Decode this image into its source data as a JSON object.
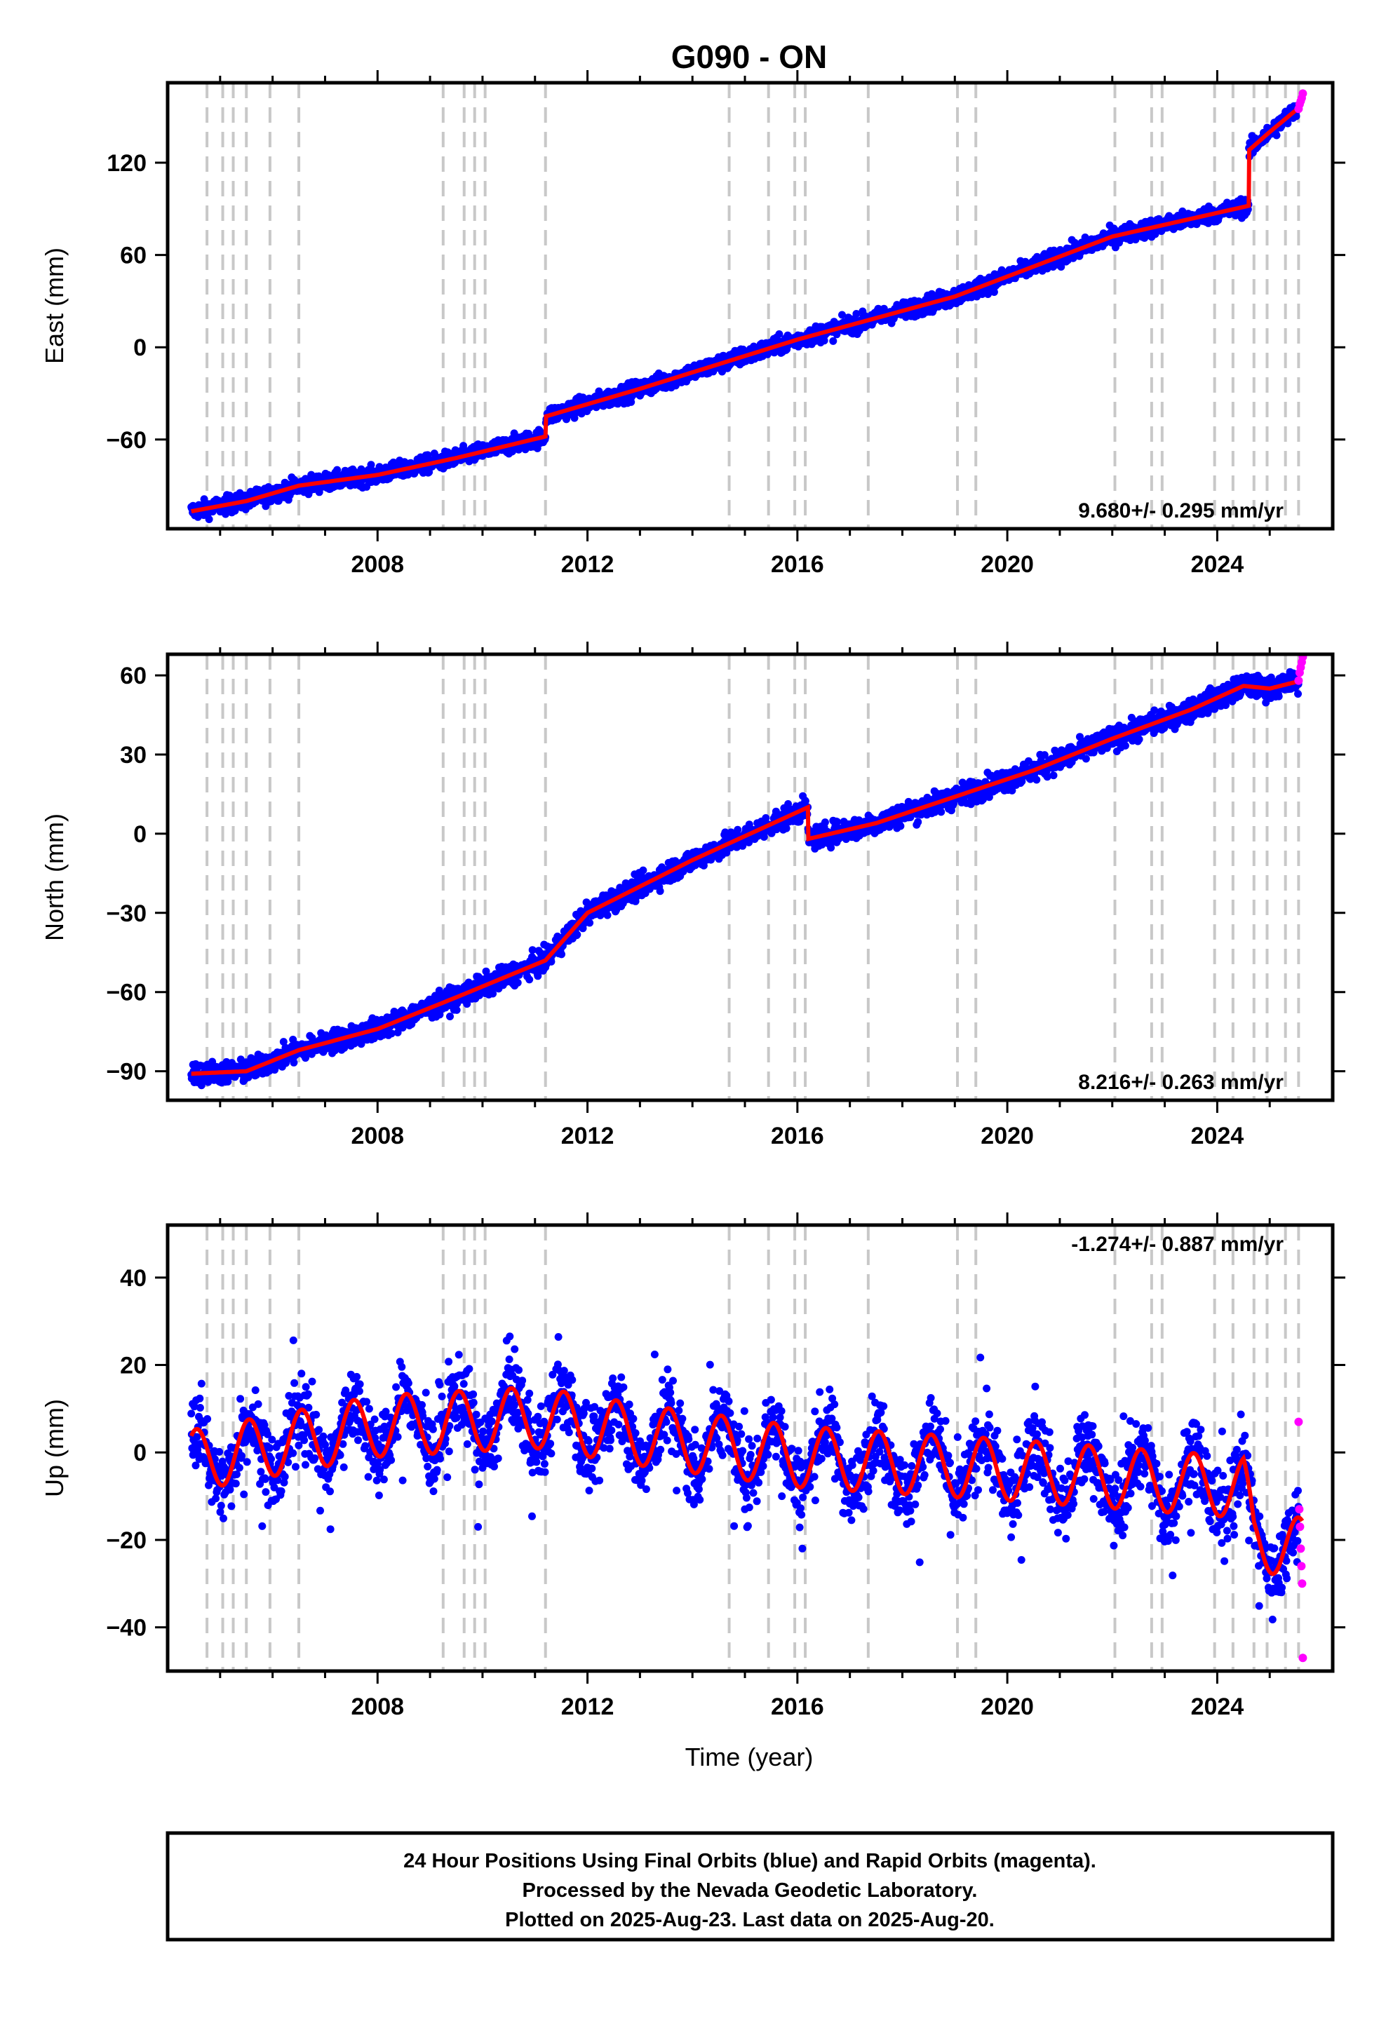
{
  "title": "G090 - ON",
  "x_label": "Time (year)",
  "footer": {
    "line1": "24 Hour Positions Using Final Orbits (blue) and Rapid Orbits (magenta).",
    "line2": "Processed by the Nevada Geodetic Laboratory.",
    "line3": "Plotted on 2025-Aug-23. Last data on 2025-Aug-20."
  },
  "colors": {
    "final_orbits": "#0000ff",
    "rapid_orbits": "#ff00ff",
    "model": "#ff0000",
    "event_lines": "#c8c8c8"
  },
  "chart_data": [
    {
      "type": "scatter",
      "id": "east",
      "ylabel": "East (mm)",
      "xlim": [
        2004.0,
        2026.2
      ],
      "ylim": [
        -118,
        172
      ],
      "x_ticks": [
        2008,
        2012,
        2016,
        2020,
        2024
      ],
      "y_ticks": [
        -60,
        0,
        60,
        120
      ],
      "rate_label": "9.680+/- 0.295 mm/yr",
      "rate_position": "bottom-right",
      "grid": false,
      "trend": [
        [
          2004.4,
          -107
        ],
        [
          2005.5,
          -100
        ],
        [
          2006.5,
          -90
        ],
        [
          2008.0,
          -83
        ],
        [
          2009.5,
          -72
        ],
        [
          2011.2,
          -58
        ],
        [
          2011.2,
          -45
        ],
        [
          2013.0,
          -27
        ],
        [
          2016.0,
          5
        ],
        [
          2019.0,
          33
        ],
        [
          2022.0,
          72
        ],
        [
          2024.6,
          92
        ],
        [
          2024.6,
          128
        ],
        [
          2025.0,
          140
        ],
        [
          2025.6,
          157
        ]
      ],
      "scatter_noise": 4,
      "rapid": {
        "x_range": [
          2025.55,
          2025.63
        ],
        "values": [
          155,
          158,
          160,
          162,
          165
        ]
      }
    },
    {
      "type": "scatter",
      "id": "north",
      "ylabel": "North (mm)",
      "xlim": [
        2004.0,
        2026.2
      ],
      "ylim": [
        -101,
        68
      ],
      "x_ticks": [
        2008,
        2012,
        2016,
        2020,
        2024
      ],
      "y_ticks": [
        -90,
        -60,
        -30,
        0,
        30,
        60
      ],
      "rate_label": "8.216+/- 0.263 mm/yr",
      "rate_position": "bottom-right",
      "grid": false,
      "trend": [
        [
          2004.4,
          -91
        ],
        [
          2005.5,
          -90
        ],
        [
          2006.5,
          -82
        ],
        [
          2008.0,
          -74
        ],
        [
          2009.5,
          -62
        ],
        [
          2011.2,
          -48
        ],
        [
          2012.0,
          -30
        ],
        [
          2014.0,
          -10
        ],
        [
          2016.2,
          10
        ],
        [
          2016.2,
          -2
        ],
        [
          2017.5,
          4
        ],
        [
          2019.0,
          14
        ],
        [
          2020.5,
          24
        ],
        [
          2022.0,
          36
        ],
        [
          2023.5,
          47
        ],
        [
          2024.5,
          56
        ],
        [
          2025.0,
          55
        ],
        [
          2025.6,
          58
        ]
      ],
      "scatter_noise": 3,
      "rapid": {
        "x_range": [
          2025.55,
          2025.63
        ],
        "values": [
          58,
          61,
          63,
          65,
          67
        ]
      }
    },
    {
      "type": "scatter",
      "id": "up",
      "ylabel": "Up (mm)",
      "xlim": [
        2004.0,
        2026.2
      ],
      "ylim": [
        -50,
        52
      ],
      "x_ticks": [
        2008,
        2012,
        2016,
        2020,
        2024
      ],
      "y_ticks": [
        -40,
        -20,
        0,
        20,
        40
      ],
      "rate_label": "-1.274+/- 0.887 mm/yr",
      "rate_position": "top-right",
      "grid": false,
      "trend": [
        [
          2004.4,
          -2
        ],
        [
          2008.0,
          6
        ],
        [
          2011.0,
          8
        ],
        [
          2013.0,
          4
        ],
        [
          2016.0,
          -1
        ],
        [
          2020.0,
          -4
        ],
        [
          2024.5,
          -8
        ],
        [
          2024.7,
          -20
        ],
        [
          2025.6,
          -22
        ]
      ],
      "seasonal_amplitude": 7,
      "scatter_noise": 6,
      "rapid": {
        "x_range": [
          2025.55,
          2025.63
        ],
        "values": [
          7,
          -13,
          -17,
          -22,
          -26,
          -30,
          -47
        ]
      }
    }
  ],
  "event_lines": [
    2004.75,
    2005.05,
    2005.25,
    2005.5,
    2005.95,
    2006.5,
    2009.25,
    2009.65,
    2009.85,
    2010.05,
    2011.2,
    2014.7,
    2015.45,
    2015.95,
    2016.15,
    2017.35,
    2019.05,
    2019.4,
    2022.05,
    2022.75,
    2022.95,
    2023.95,
    2024.3,
    2024.7,
    2024.95,
    2025.3,
    2025.55
  ]
}
